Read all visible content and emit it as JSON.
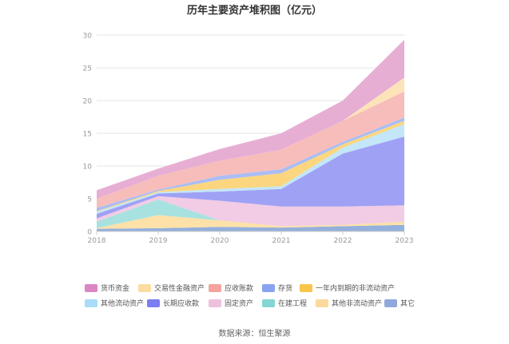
{
  "chart_data": {
    "type": "area",
    "stacked": true,
    "title": "历年主要资产堆积图（亿元）",
    "x": [
      "2018",
      "2019",
      "2020",
      "2021",
      "2022",
      "2023"
    ],
    "ylim": [
      0,
      30
    ],
    "yticks": [
      0,
      5,
      10,
      15,
      20,
      25,
      30
    ],
    "grid": true,
    "legend_position": "bottom",
    "series": [
      {
        "name": "其它",
        "color": "#94b0dc",
        "values": [
          0.4,
          0.5,
          0.7,
          0.6,
          0.8,
          1.0
        ]
      },
      {
        "name": "其他非流动资产",
        "color": "#fde1a8",
        "values": [
          0.1,
          2.0,
          1.0,
          0.2,
          0.2,
          0.5
        ]
      },
      {
        "name": "在建工程",
        "color": "#a8e2e0",
        "values": [
          1.0,
          2.4,
          0.0,
          0.0,
          0.0,
          0.0
        ]
      },
      {
        "name": "固定资产",
        "color": "#f1cce4",
        "values": [
          0.5,
          0.5,
          3.0,
          3.0,
          2.8,
          2.5
        ]
      },
      {
        "name": "长期应收款",
        "color": "#9fa1f5",
        "values": [
          0.7,
          0.4,
          1.4,
          2.7,
          8.1,
          10.5
        ]
      },
      {
        "name": "其他流动资产",
        "color": "#c3e6f8",
        "values": [
          0.3,
          0.2,
          0.4,
          0.4,
          0.9,
          1.9
        ]
      },
      {
        "name": "一年内到期的非流动资产",
        "color": "#fcd67f",
        "values": [
          0.1,
          0.2,
          1.4,
          2.0,
          0.5,
          0.5
        ]
      },
      {
        "name": "存货",
        "color": "#aabdf4",
        "values": [
          0.5,
          0.2,
          0.6,
          0.6,
          0.4,
          0.5
        ]
      },
      {
        "name": "应收账款",
        "color": "#f7bdbb",
        "values": [
          1.4,
          2.1,
          2.3,
          3.0,
          3.2,
          4.0
        ]
      },
      {
        "name": "交易性金融资产",
        "color": "#fde3b8",
        "values": [
          0.0,
          0.0,
          0.0,
          0.0,
          0.0,
          2.1
        ]
      },
      {
        "name": "货币资金",
        "color": "#e7aed4",
        "values": [
          1.3,
          1.1,
          1.8,
          2.5,
          3.1,
          5.8
        ]
      }
    ]
  },
  "legend": [
    {
      "label": "货币资金",
      "color": "#d986c2"
    },
    {
      "label": "交易性金融资产",
      "color": "#fcdca1"
    },
    {
      "label": "应收账款",
      "color": "#f4a39d"
    },
    {
      "label": "存货",
      "color": "#8aa3f0"
    },
    {
      "label": "一年内到期的非流动资产",
      "color": "#f8c64a"
    },
    {
      "label": "其他流动资产",
      "color": "#a8dcf7"
    },
    {
      "label": "长期应收款",
      "color": "#7b7ef0"
    },
    {
      "label": "固定资产",
      "color": "#eec0de"
    },
    {
      "label": "在建工程",
      "color": "#84d7d4"
    },
    {
      "label": "其他非流动资产",
      "color": "#fcd99c"
    },
    {
      "label": "其它",
      "color": "#8fa9dc"
    }
  ],
  "source": "数据来源：恒生聚源"
}
